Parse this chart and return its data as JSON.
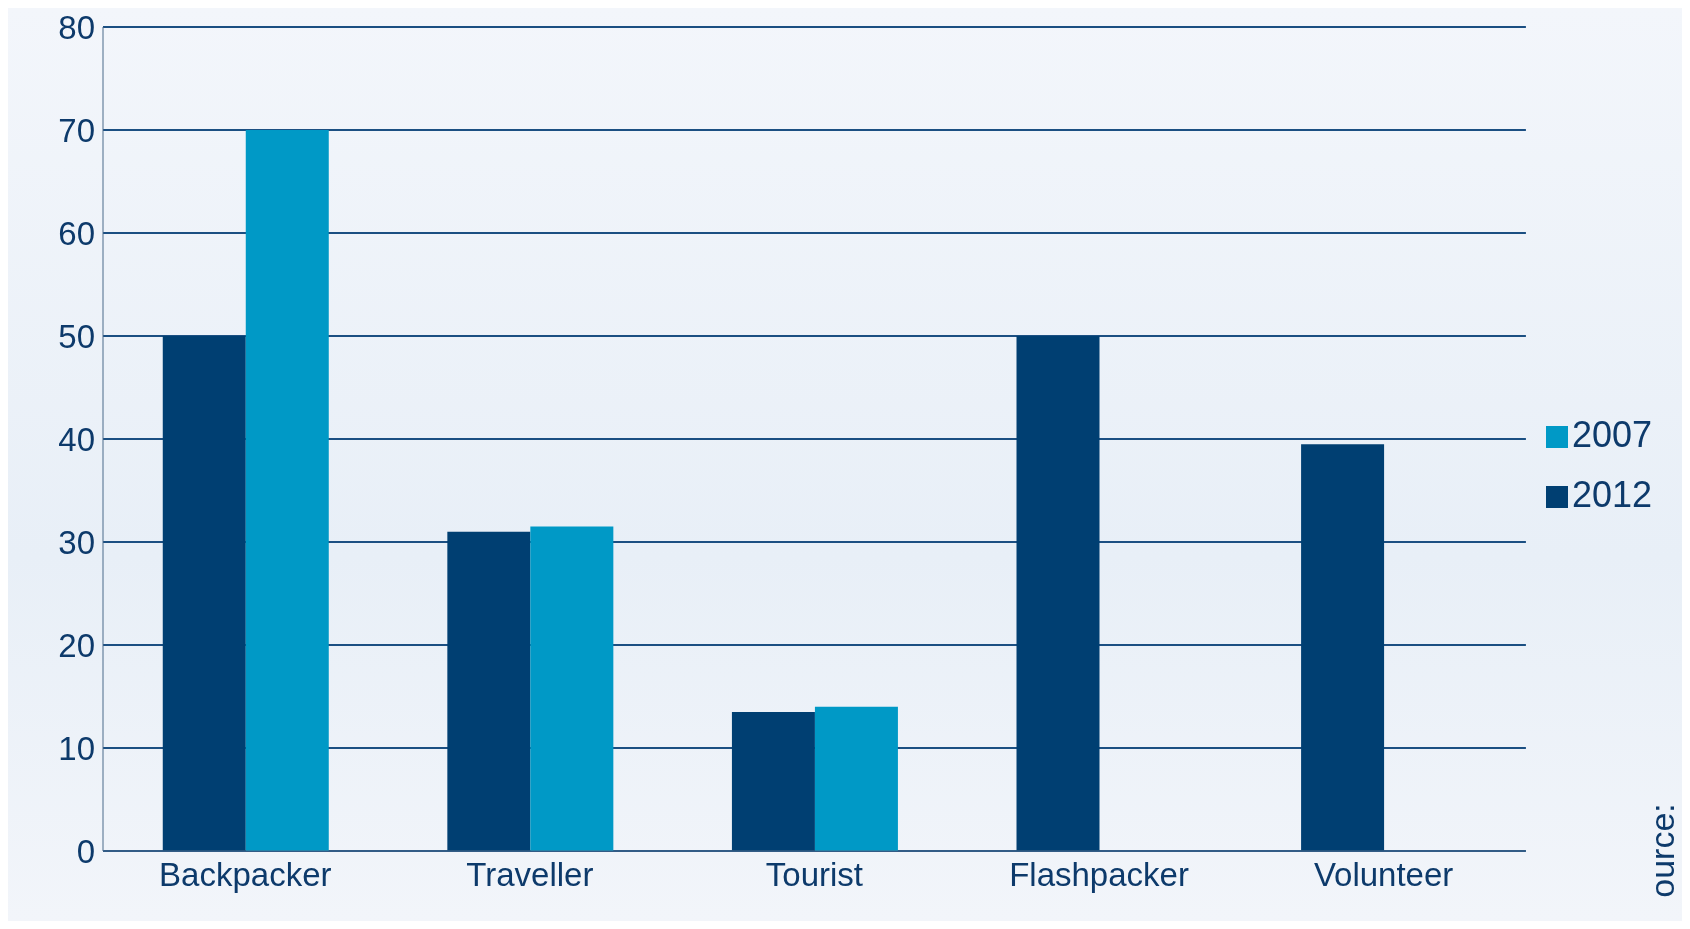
{
  "chart_data": {
    "type": "bar",
    "categories": [
      "Backpacker",
      "Traveller",
      "Tourist",
      "Flashpacker",
      "Volunteer"
    ],
    "series": [
      {
        "name": "2012",
        "color": "#003f72",
        "values": [
          50,
          31,
          13.5,
          50,
          39.5
        ]
      },
      {
        "name": "2007",
        "color": "#0099c6",
        "values": [
          70,
          31.5,
          14,
          null,
          null
        ]
      }
    ],
    "ylim": [
      0,
      80
    ],
    "yticks": [
      0,
      10,
      20,
      30,
      40,
      50,
      60,
      70,
      80
    ],
    "grid": "y",
    "legend": "right",
    "annotations": [
      "ource:"
    ]
  }
}
